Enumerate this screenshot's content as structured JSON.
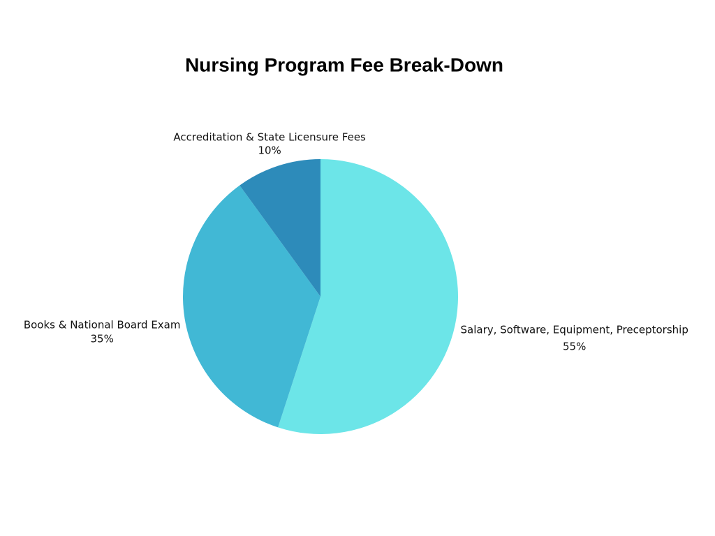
{
  "chart_data": {
    "type": "pie",
    "title": "Nursing Program Fee Break-Down",
    "categories": [
      "Salary, Software, Equipment, Preceptorship",
      "Books & National Board Exam",
      "Accreditation & State Licensure Fees"
    ],
    "values": [
      55,
      35,
      10
    ],
    "value_labels": [
      "55%",
      "35%",
      "10%"
    ],
    "colors": [
      "#6ce5e8",
      "#41b8d5",
      "#2d8bba"
    ]
  }
}
